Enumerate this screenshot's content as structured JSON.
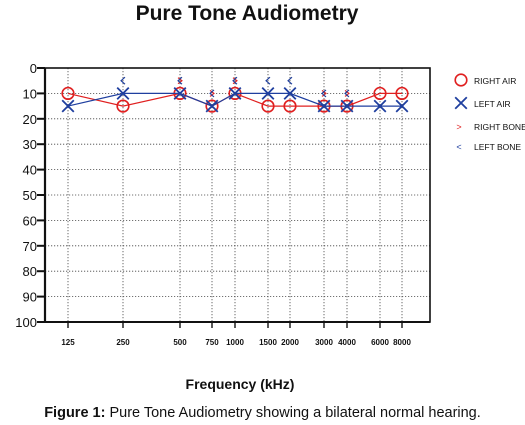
{
  "title": "Pure Tone Audiometry",
  "caption": {
    "label": "Figure 1:",
    "text": "Pure Tone Audiometry showing a bilateral normal hearing."
  },
  "chart_data": {
    "type": "line",
    "xlabel": "Frequency (kHz)",
    "ylabel": "",
    "x_tick_labels": [
      "125",
      "250",
      "500",
      "750",
      "1000",
      "1500",
      "2000",
      "3000",
      "4000",
      "6000",
      "8000"
    ],
    "y_ticks": [
      0,
      10,
      20,
      30,
      40,
      50,
      60,
      70,
      80,
      90,
      100
    ],
    "ylim": [
      0,
      100
    ],
    "y_inverted": true,
    "grid": true,
    "legend_position": "right",
    "series": [
      {
        "name": "RIGHT AIR",
        "marker": "circle",
        "color": "#e02020",
        "connected": true,
        "x": [
          "125",
          "250",
          "500",
          "750",
          "1000",
          "1500",
          "2000",
          "3000",
          "4000",
          "6000",
          "8000"
        ],
        "y": [
          10,
          15,
          10,
          15,
          10,
          15,
          15,
          15,
          15,
          10,
          10
        ]
      },
      {
        "name": "LEFT AIR",
        "marker": "x",
        "color": "#1f3f9f",
        "connected": true,
        "x": [
          "125",
          "250",
          "500",
          "750",
          "1000",
          "1500",
          "2000",
          "3000",
          "4000",
          "6000",
          "8000"
        ],
        "y": [
          15,
          10,
          10,
          15,
          10,
          10,
          10,
          15,
          15,
          15,
          15
        ]
      },
      {
        "name": "RIGHT BONE",
        "marker": ">",
        "color": "#e02020",
        "connected": false,
        "x": [
          "500",
          "750",
          "1000",
          "3000",
          "4000"
        ],
        "y": [
          5,
          10,
          5,
          10,
          10
        ]
      },
      {
        "name": "LEFT BONE",
        "marker": "<",
        "color": "#1f3f9f",
        "connected": false,
        "x": [
          "250",
          "500",
          "750",
          "1000",
          "1500",
          "2000",
          "3000",
          "4000"
        ],
        "y": [
          5,
          5,
          10,
          5,
          5,
          5,
          10,
          10
        ]
      }
    ]
  }
}
